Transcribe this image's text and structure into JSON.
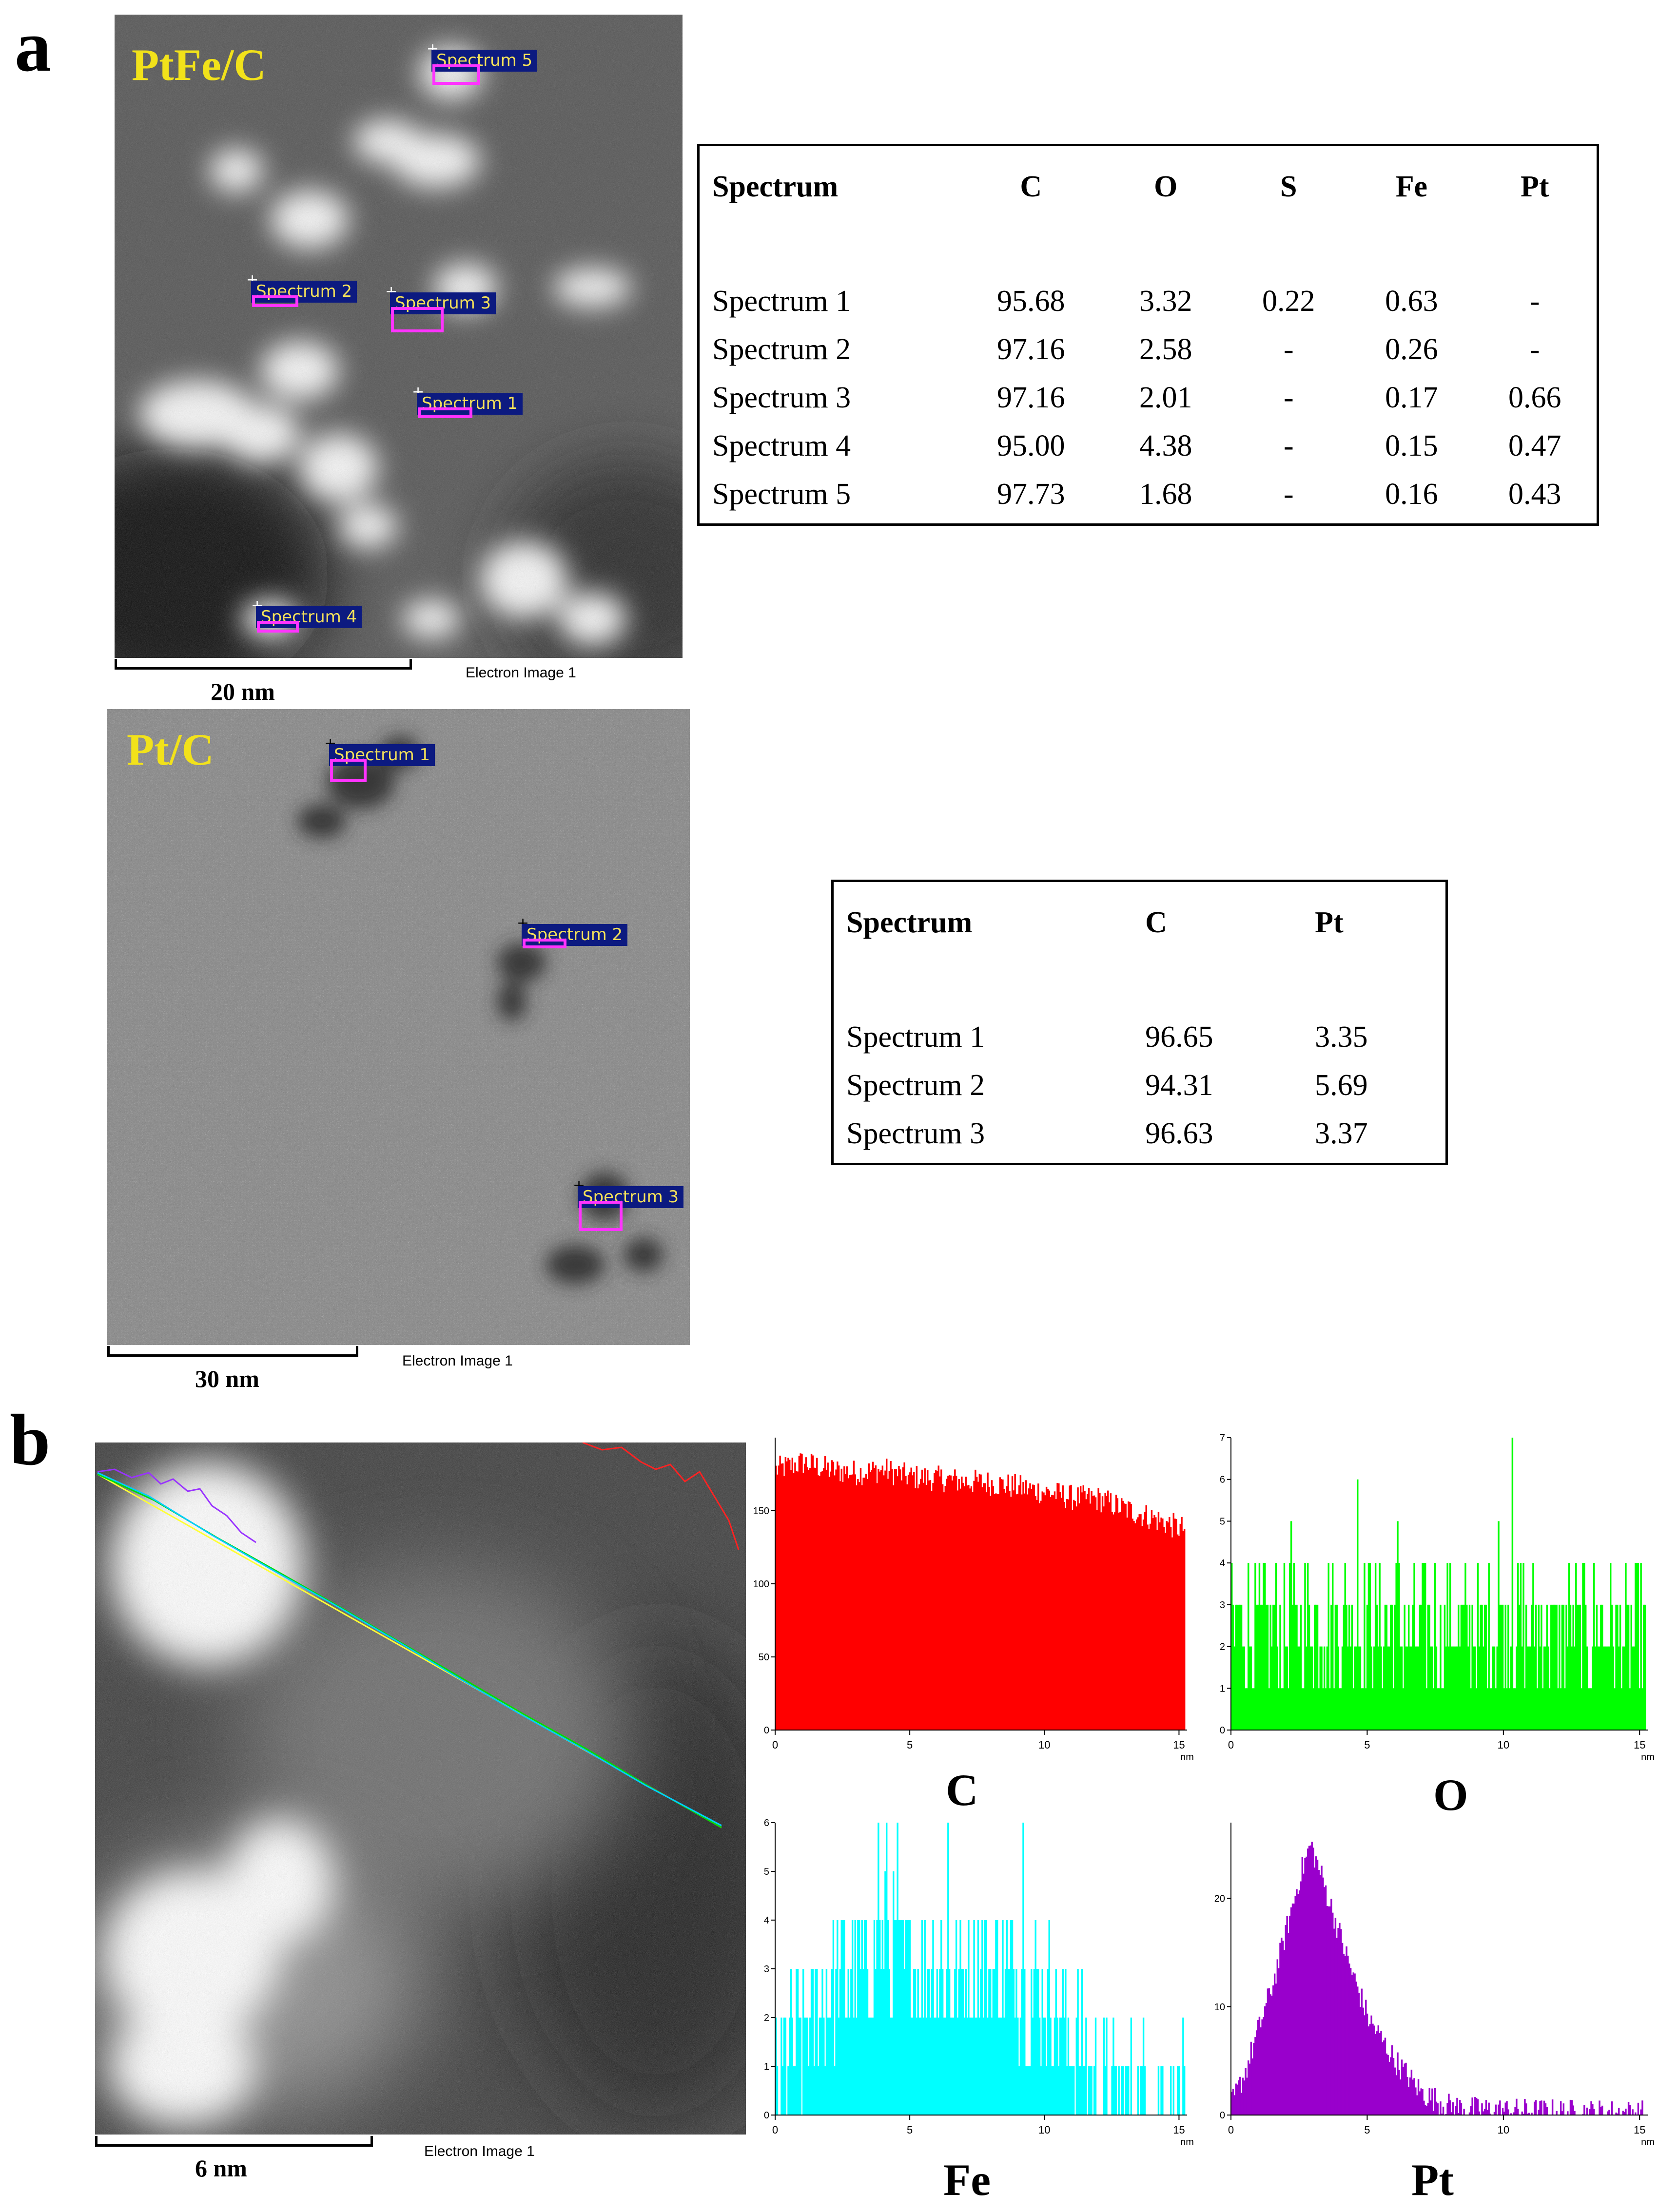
{
  "figure": {
    "panel_a": {
      "letter": "a",
      "ptfe": {
        "label": "PtFe/C",
        "scalebar_label": "20 nm",
        "image_caption": "Electron Image 1",
        "spectra_tags": [
          "Spectrum 1",
          "Spectrum 2",
          "Spectrum 3",
          "Spectrum 4",
          "Spectrum 5"
        ],
        "table": {
          "headers": [
            "Spectrum",
            "C",
            "O",
            "S",
            "Fe",
            "Pt"
          ],
          "rows": [
            [
              "Spectrum 1",
              "95.68",
              "3.32",
              "0.22",
              "0.63",
              "-"
            ],
            [
              "Spectrum 2",
              "97.16",
              "2.58",
              "-",
              "0.26",
              "-"
            ],
            [
              "Spectrum 3",
              "97.16",
              "2.01",
              "-",
              "0.17",
              "0.66"
            ],
            [
              "Spectrum 4",
              "95.00",
              "4.38",
              "-",
              "0.15",
              "0.47"
            ],
            [
              "Spectrum 5",
              "97.73",
              "1.68",
              "-",
              "0.16",
              "0.43"
            ]
          ]
        }
      },
      "pt": {
        "label": "Pt/C",
        "scalebar_label": "30 nm",
        "image_caption": "Electron Image 1",
        "spectra_tags": [
          "Spectrum 1",
          "Spectrum 2",
          "Spectrum 3"
        ],
        "table": {
          "headers": [
            "Spectrum",
            "C",
            "Pt"
          ],
          "rows": [
            [
              "Spectrum 1",
              "96.65",
              "3.35"
            ],
            [
              "Spectrum 2",
              "94.31",
              "5.69"
            ],
            [
              "Spectrum 3",
              "96.63",
              "3.37"
            ]
          ]
        }
      }
    },
    "panel_b": {
      "letter": "b",
      "scalebar_label": "6 nm",
      "image_caption": "Electron Image 1",
      "element_labels": {
        "c": "C",
        "o": "O",
        "fe": "Fe",
        "pt": "Pt"
      }
    }
  },
  "chart_data": [
    {
      "type": "bar",
      "element": "C",
      "xlabel": "nm",
      "xlim": [
        0,
        15.3
      ],
      "ylim": [
        0,
        200
      ],
      "x_ticks": [
        0,
        5,
        10,
        15
      ],
      "y_ticks": [
        0,
        50,
        100,
        150
      ],
      "color": "#ff0000",
      "profile_points": [
        [
          0,
          178
        ],
        [
          1,
          183
        ],
        [
          2,
          178
        ],
        [
          3,
          176
        ],
        [
          4,
          178
        ],
        [
          5,
          173
        ],
        [
          6,
          172
        ],
        [
          7,
          170
        ],
        [
          8,
          169
        ],
        [
          9,
          166
        ],
        [
          10,
          163
        ],
        [
          11,
          159
        ],
        [
          12,
          158
        ],
        [
          13,
          151
        ],
        [
          14,
          145
        ],
        [
          15,
          138
        ]
      ],
      "points": 300
    },
    {
      "type": "bar",
      "element": "O",
      "xlabel": "nm",
      "xlim": [
        0,
        15.3
      ],
      "ylim": [
        0,
        7
      ],
      "x_ticks": [
        0,
        5,
        10,
        15
      ],
      "y_ticks": [
        0,
        1,
        2,
        3,
        4,
        5,
        6,
        7
      ],
      "color": "#00ff00",
      "profile_points": [
        [
          0,
          2.5
        ],
        [
          5,
          2.6
        ],
        [
          10,
          2.4
        ],
        [
          15,
          2.3
        ]
      ],
      "peaks": [
        [
          4.6,
          6
        ],
        [
          10.3,
          7
        ],
        [
          2.2,
          5
        ],
        [
          6.1,
          5
        ],
        [
          9.8,
          5
        ]
      ],
      "points": 300
    },
    {
      "type": "bar",
      "element": "Fe",
      "xlabel": "nm",
      "xlim": [
        0,
        15.3
      ],
      "ylim": [
        0,
        6
      ],
      "x_ticks": [
        0,
        5,
        10,
        15
      ],
      "y_ticks": [
        0,
        1,
        2,
        3,
        4,
        5,
        6
      ],
      "color": "#00ffff",
      "profile_points": [
        [
          0,
          0.8
        ],
        [
          1,
          1.5
        ],
        [
          2,
          2.6
        ],
        [
          3,
          3.0
        ],
        [
          4,
          3.2
        ],
        [
          5,
          3.1
        ],
        [
          6,
          3.1
        ],
        [
          7,
          3.0
        ],
        [
          8,
          3.0
        ],
        [
          9,
          2.9
        ],
        [
          10,
          2.5
        ],
        [
          11,
          1.6
        ],
        [
          12,
          0.6
        ],
        [
          13,
          0.3
        ],
        [
          14,
          0.3
        ],
        [
          15,
          0.2
        ]
      ],
      "peaks": [
        [
          3.8,
          6
        ],
        [
          4.1,
          6
        ],
        [
          4.5,
          6
        ],
        [
          6.4,
          6
        ],
        [
          9.2,
          6
        ]
      ],
      "points": 300
    },
    {
      "type": "bar",
      "element": "Pt",
      "xlabel": "nm",
      "xlim": [
        0,
        15.3
      ],
      "ylim": [
        0,
        27
      ],
      "x_ticks": [
        0,
        5,
        10,
        15
      ],
      "y_ticks": [
        0,
        10,
        20
      ],
      "color": "#9900cc",
      "profile_points": [
        [
          0,
          1
        ],
        [
          0.5,
          4
        ],
        [
          1,
          8
        ],
        [
          1.5,
          12
        ],
        [
          2,
          17
        ],
        [
          2.5,
          22
        ],
        [
          2.9,
          25
        ],
        [
          3.3,
          22
        ],
        [
          3.8,
          18
        ],
        [
          4.3,
          14
        ],
        [
          5,
          9
        ],
        [
          5.5,
          7
        ],
        [
          6,
          5
        ],
        [
          7,
          2
        ],
        [
          8,
          0.8
        ],
        [
          9,
          0.5
        ],
        [
          10,
          0.4
        ],
        [
          12,
          0.3
        ],
        [
          15,
          0.2
        ]
      ],
      "points": 300
    }
  ]
}
